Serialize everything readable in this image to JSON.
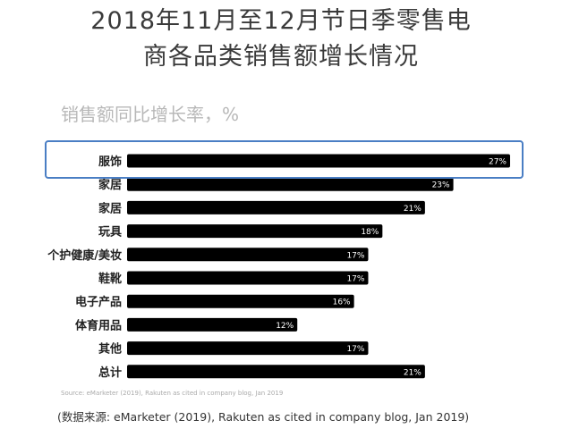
{
  "title_line1": "2018年11月至12月节日季零售电",
  "title_line2": "商各品类销售额增长情况",
  "subtitle": "销售额同比增长率，%",
  "source_small": "Source: eMarketer (2019), Rakuten as cited in company blog, Jan 2019",
  "source_main": "(数据来源: eMarketer (2019), Rakuten as cited in company blog, Jan 2019)",
  "colors": {
    "bar": "#000000",
    "highlight": "#4a7ec4",
    "label_text": "#ffffff"
  },
  "chart_data": {
    "type": "bar",
    "orientation": "horizontal",
    "title": "2018年11月至12月节日季零售电商各品类销售额增长情况",
    "subtitle": "销售额同比增长率，%",
    "categories": [
      "服饰",
      "家居",
      "家居",
      "玩具",
      "个护健康/美妆",
      "鞋靴",
      "电子产品",
      "体育用品",
      "其他",
      "总计"
    ],
    "values": [
      27,
      23,
      21,
      18,
      17,
      17,
      16,
      12,
      17,
      21
    ],
    "value_labels": [
      "27%",
      "23%",
      "21%",
      "18%",
      "17%",
      "17%",
      "16%",
      "12%",
      "17%",
      "21%"
    ],
    "highlighted_category_index": 0,
    "xlim": [
      0,
      27
    ],
    "grid": false
  }
}
